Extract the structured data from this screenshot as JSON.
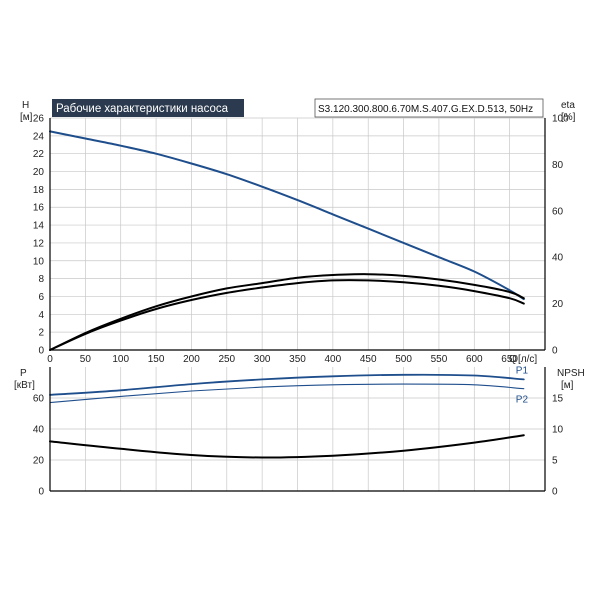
{
  "header": {
    "title": "Рабочие характеристики насоса",
    "model": "S3.120.300.800.6.70M.S.407.G.EX.D.513, 50Hz"
  },
  "chart_data": [
    {
      "type": "line",
      "y_axis_left": {
        "label": "H",
        "unit": "[м]",
        "range": [
          0,
          26
        ],
        "ticks": [
          0,
          2,
          4,
          6,
          8,
          10,
          12,
          14,
          16,
          18,
          20,
          22,
          24,
          26
        ]
      },
      "y_axis_right": {
        "label": "eta",
        "unit": "[%]",
        "range": [
          0,
          100
        ],
        "ticks": [
          0,
          20,
          40,
          60,
          80,
          100
        ]
      },
      "x_axis": {
        "label": "Q",
        "unit": "[л/с]",
        "range": [
          0,
          700
        ],
        "ticks": [
          0,
          50,
          100,
          150,
          200,
          250,
          300,
          350,
          400,
          450,
          500,
          550,
          600,
          650
        ]
      },
      "grid": true,
      "series": [
        {
          "axis": "left",
          "color": "#1f4e8c",
          "x": [
            0,
            50,
            100,
            150,
            200,
            250,
            300,
            350,
            400,
            450,
            500,
            550,
            600,
            650,
            670
          ],
          "y": [
            24.5,
            23.7,
            22.9,
            22.0,
            20.9,
            19.7,
            18.3,
            16.8,
            15.2,
            13.6,
            12.0,
            10.4,
            8.8,
            6.7,
            5.7
          ]
        },
        {
          "axis": "left",
          "color": "#000000",
          "x": [
            0,
            50,
            100,
            150,
            200,
            250,
            300,
            350,
            400,
            450,
            500,
            550,
            600,
            650,
            670
          ],
          "y": [
            0,
            1.9,
            3.5,
            4.9,
            6.0,
            6.9,
            7.5,
            8.1,
            8.4,
            8.5,
            8.3,
            7.9,
            7.3,
            6.5,
            5.8
          ]
        },
        {
          "axis": "left",
          "color": "#000000",
          "x": [
            0,
            50,
            100,
            150,
            200,
            250,
            300,
            350,
            400,
            450,
            500,
            550,
            600,
            650,
            670
          ],
          "y": [
            0,
            1.8,
            3.3,
            4.6,
            5.6,
            6.4,
            7.0,
            7.5,
            7.8,
            7.8,
            7.6,
            7.2,
            6.6,
            5.8,
            5.2
          ]
        }
      ]
    },
    {
      "type": "line",
      "y_axis_left": {
        "label": "P",
        "unit": "[кВт]",
        "range": [
          0,
          80
        ],
        "ticks": [
          0,
          20,
          40,
          60
        ]
      },
      "y_axis_right": {
        "label": "NPSH",
        "unit": "[м]",
        "range": [
          0,
          20
        ],
        "ticks": [
          0,
          5,
          10,
          15
        ]
      },
      "x_axis": {
        "range": [
          0,
          700
        ]
      },
      "grid": true,
      "series": [
        {
          "name": "P1",
          "axis": "left",
          "color": "#1f4e8c",
          "x": [
            0,
            100,
            200,
            300,
            400,
            500,
            600,
            670
          ],
          "y": [
            62.0,
            65.0,
            69.0,
            72.0,
            74.0,
            75.0,
            74.5,
            72.0
          ]
        },
        {
          "name": "P2",
          "axis": "left",
          "color": "#1f4e8c",
          "x": [
            0,
            100,
            200,
            300,
            400,
            500,
            600,
            670
          ],
          "y": [
            57.0,
            61.0,
            64.5,
            67.0,
            68.5,
            69.0,
            68.5,
            66.0
          ]
        },
        {
          "axis": "right",
          "color": "#000000",
          "x": [
            0,
            100,
            200,
            300,
            400,
            500,
            600,
            670
          ],
          "y": [
            8.0,
            6.8,
            5.8,
            5.4,
            5.7,
            6.5,
            7.8,
            9.0
          ]
        }
      ]
    }
  ]
}
